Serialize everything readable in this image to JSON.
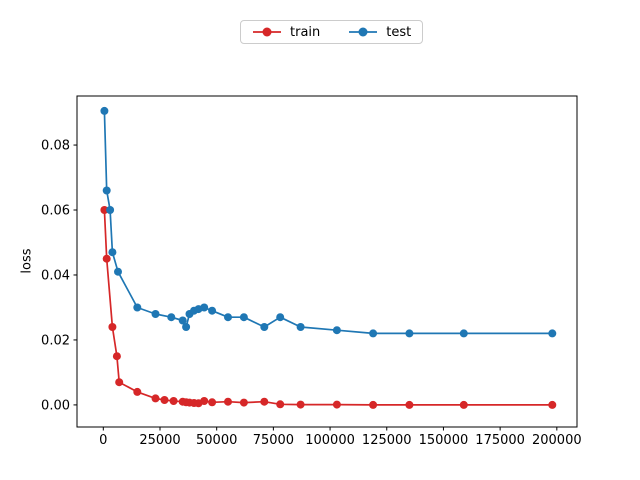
{
  "legend": {
    "entries": [
      {
        "label": "train",
        "color": "#d62728"
      },
      {
        "label": "test",
        "color": "#1f77b4"
      }
    ]
  },
  "chart_data": {
    "type": "line",
    "title": "",
    "xlabel": "",
    "ylabel": "loss",
    "grid": false,
    "legend_position": "upper center, outside axes",
    "marker": "o",
    "xlim": [
      -11600,
      208900
    ],
    "ylim": [
      -0.0068,
      0.0951
    ],
    "xticks": [
      0,
      25000,
      50000,
      75000,
      100000,
      125000,
      150000,
      175000,
      200000
    ],
    "xticklabels": [
      "0",
      "25000",
      "50000",
      "75000",
      "100000",
      "125000",
      "150000",
      "175000",
      "200000"
    ],
    "yticks": [
      0.0,
      0.02,
      0.04,
      0.06,
      0.08
    ],
    "yticklabels": [
      "0.00",
      "0.02",
      "0.04",
      "0.06",
      "0.08"
    ],
    "series": [
      {
        "name": "train",
        "color": "#d62728",
        "x": [
          500,
          1500,
          4000,
          6000,
          7000,
          15000,
          23000,
          27000,
          31000,
          35000,
          36500,
          38000,
          40000,
          42000,
          44500,
          48000,
          55000,
          62000,
          71000,
          78000,
          87000,
          103000,
          119000,
          135000,
          159000,
          198000
        ],
        "y": [
          0.06,
          0.045,
          0.024,
          0.015,
          0.007,
          0.004,
          0.002,
          0.0015,
          0.0012,
          0.001,
          0.0008,
          0.0007,
          0.0006,
          0.0005,
          0.0012,
          0.0008,
          0.001,
          0.0007,
          0.001,
          0.0002,
          0.0001,
          0.0001,
          0.0,
          0.0,
          0.0,
          0.0
        ]
      },
      {
        "name": "test",
        "color": "#1f77b4",
        "x": [
          500,
          1500,
          3000,
          4000,
          6500,
          15000,
          23000,
          30000,
          35000,
          36500,
          38000,
          40000,
          42000,
          44500,
          48000,
          55000,
          62000,
          71000,
          78000,
          87000,
          103000,
          119000,
          135000,
          159000,
          198000
        ],
        "y": [
          0.0905,
          0.066,
          0.06,
          0.047,
          0.041,
          0.03,
          0.028,
          0.027,
          0.026,
          0.024,
          0.028,
          0.029,
          0.0295,
          0.03,
          0.029,
          0.027,
          0.027,
          0.024,
          0.027,
          0.024,
          0.023,
          0.022,
          0.022,
          0.022,
          0.022
        ]
      }
    ]
  }
}
